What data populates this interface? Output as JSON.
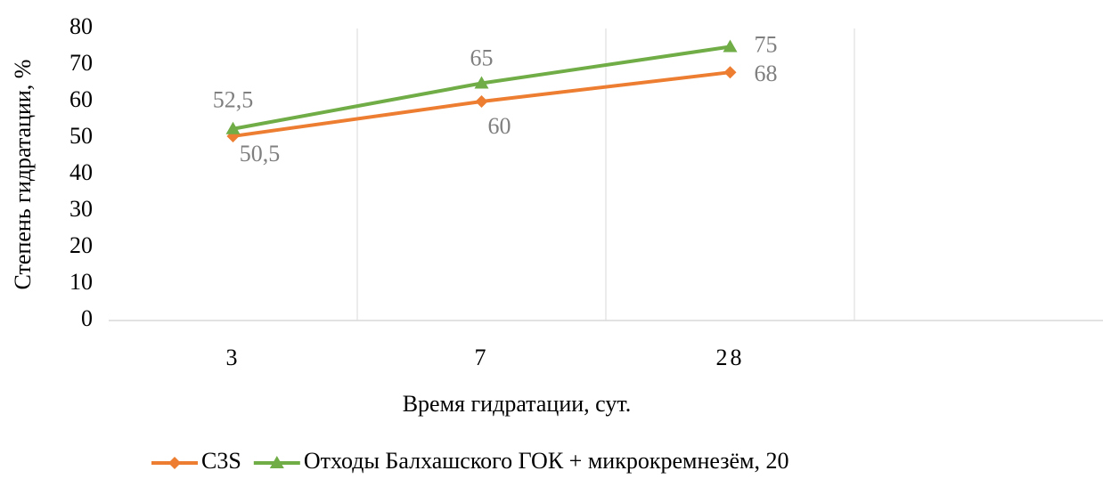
{
  "chart_data": {
    "type": "line",
    "categories": [
      "3",
      "7",
      "28",
      null
    ],
    "series": [
      {
        "name": "C3S",
        "color": "#ed7d31",
        "marker": "diamond",
        "values": [
          50.5,
          60,
          68,
          null
        ],
        "value_labels": [
          "50,5",
          "60",
          "68",
          null
        ]
      },
      {
        "name": "Отходы Балхашского ГОК + микрокремнезём, 20",
        "color": "#70ad47",
        "marker": "triangle",
        "values": [
          52.5,
          65,
          75,
          null
        ],
        "value_labels": [
          "52,5",
          "65",
          "75",
          null
        ]
      }
    ],
    "ylim": [
      0,
      80
    ],
    "yticks": [
      0,
      10,
      20,
      30,
      40,
      50,
      60,
      70,
      80
    ],
    "x_label": "Время гидратации, сут.",
    "y_label": "Степень гидратации, %",
    "grid": "vertical",
    "legend": "bottom"
  }
}
